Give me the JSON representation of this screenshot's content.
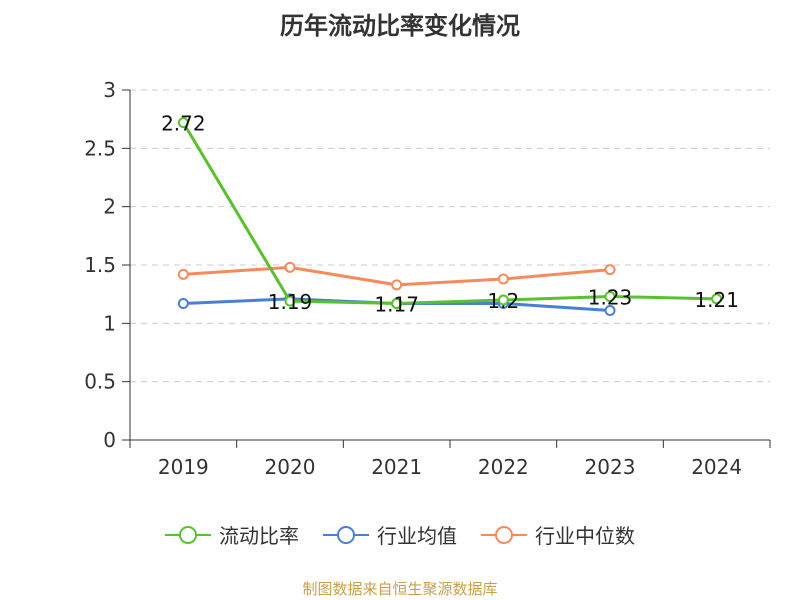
{
  "chart_data": {
    "type": "line",
    "title": "历年流动比率变化情况",
    "categories": [
      "2019",
      "2020",
      "2021",
      "2022",
      "2023",
      "2024"
    ],
    "ylim": [
      0,
      3
    ],
    "yticks": [
      "0",
      "0.5",
      "1",
      "1.5",
      "2",
      "2.5",
      "3"
    ],
    "grid": true,
    "legend_position": "bottom",
    "series": [
      {
        "name": "流动比率",
        "color": "#5ac12e",
        "values": [
          2.72,
          1.19,
          1.17,
          1.2,
          1.23,
          1.21
        ],
        "labels": [
          "2.72",
          "1.19",
          "1.17",
          "1.2",
          "1.23",
          "1.21"
        ]
      },
      {
        "name": "行业均值",
        "color": "#4a7fd6",
        "values": [
          1.17,
          1.21,
          1.17,
          1.17,
          1.11,
          null
        ]
      },
      {
        "name": "行业中位数",
        "color": "#f58b5a",
        "values": [
          1.42,
          1.48,
          1.33,
          1.38,
          1.46,
          null
        ]
      }
    ]
  },
  "footer": "制图数据来自恒生聚源数据库"
}
